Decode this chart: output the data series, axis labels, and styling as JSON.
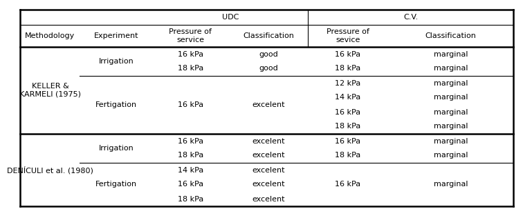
{
  "header1": {
    "udc_label": "UDC",
    "cv_label": "C.V."
  },
  "header2": [
    "Methodology",
    "Experiment",
    "Pressure of\nservice",
    "Classification",
    "Pressure of\nsevice",
    "Classification"
  ],
  "methodology_labels": [
    "KELLER &\nKARMELI (1975)",
    "DENÍCULI et al. (1980)"
  ],
  "experiment_labels": [
    "Irrigation",
    "Fertigation",
    "Irrigation",
    "Fertigation"
  ],
  "udc_pressure": [
    [
      "16 kPa",
      "18 kPa"
    ],
    [
      "16 kPa"
    ],
    [
      "16 kPa",
      "18 kPa"
    ],
    [
      "14 kPa",
      "16 kPa",
      "18 kPa"
    ]
  ],
  "udc_class": [
    [
      "good",
      "good"
    ],
    [
      "excelent"
    ],
    [
      "excelent",
      "excelent"
    ],
    [
      "excelent",
      "excelent",
      "excelent"
    ]
  ],
  "cv_pressure": [
    [
      "16 kPa",
      "18 kPa"
    ],
    [
      "12 kPa",
      "14 kPa",
      "16 kPa",
      "18 kPa"
    ],
    [
      "16 kPa",
      "18 kPa"
    ],
    [
      "",
      "16 kPa",
      ""
    ]
  ],
  "cv_class": [
    [
      "marginal",
      "marginal"
    ],
    [
      "marginal",
      "marginal",
      "marginal",
      "marginal"
    ],
    [
      "marginal",
      "marginal"
    ],
    [
      "",
      "marginal",
      ""
    ]
  ],
  "bg_color": "#ffffff",
  "text_color": "#000000",
  "line_color": "#000000",
  "font_size": 8.0
}
